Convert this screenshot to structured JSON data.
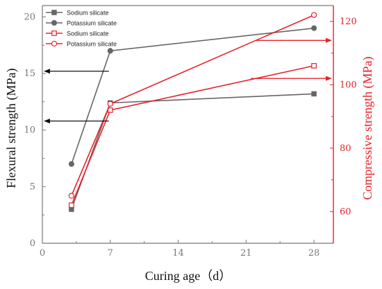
{
  "chart_data": {
    "type": "line",
    "x": [
      3,
      7,
      28
    ],
    "xlabel": "Curing age（d）",
    "xlim": [
      0,
      30
    ],
    "xticks": [
      "0",
      "7",
      "14",
      "21",
      "28"
    ],
    "ylabel_left": "Flexural strength (MPa)",
    "ylim_left": [
      0,
      21
    ],
    "yticks_left": [
      "0",
      "5",
      "10",
      "15",
      "20"
    ],
    "ylabel_right": "Compressive strength (MPa)",
    "ylim_right": [
      50,
      125
    ],
    "yticks_right": [
      "60",
      "80",
      "100",
      "120"
    ],
    "series": [
      {
        "name": "Sodium silicate",
        "axis": "left",
        "marker": "square-filled",
        "color": "#666666",
        "values": [
          3.0,
          12.4,
          13.2
        ]
      },
      {
        "name": "Potassium silicate",
        "axis": "left",
        "marker": "circle-filled",
        "color": "#666666",
        "values": [
          7.0,
          17.0,
          19.0
        ]
      },
      {
        "name": "Sodium silicate",
        "axis": "right",
        "marker": "square-open",
        "color": "#e8202a",
        "values": [
          62.0,
          92.0,
          106.0
        ]
      },
      {
        "name": "Potassium silicate",
        "axis": "right",
        "marker": "circle-open",
        "color": "#e8202a",
        "values": [
          65.0,
          94.0,
          122.0
        ]
      }
    ],
    "annotations": [
      {
        "type": "arrow",
        "points_to": "left",
        "value": 15.2
      },
      {
        "type": "arrow",
        "points_to": "left",
        "value": 10.8
      },
      {
        "type": "arrow",
        "points_to": "right",
        "value": 114.0
      },
      {
        "type": "arrow",
        "points_to": "right",
        "value": 102.0
      }
    ],
    "legend": "top-left",
    "grid": false,
    "colors": {
      "left_axis": "#777777",
      "right_axis": "#e8202a"
    }
  }
}
